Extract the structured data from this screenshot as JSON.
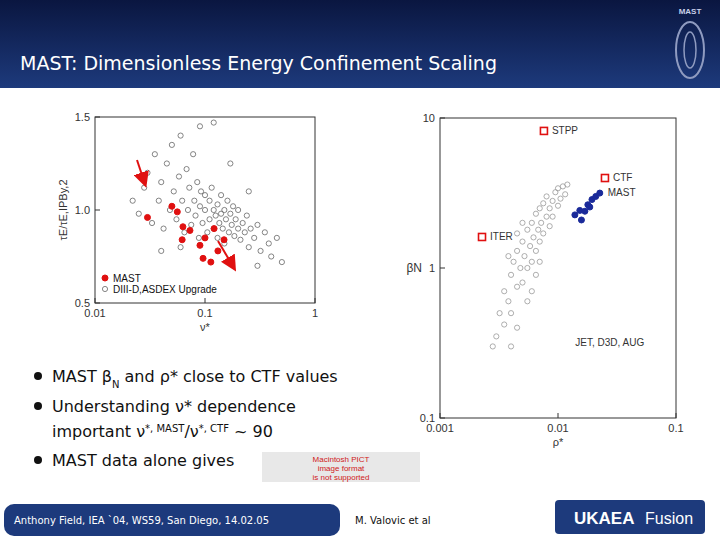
{
  "slide": {
    "title": "MAST: Dimensionless Energy Confinement Scaling",
    "logo": "MAST",
    "bullets": [
      {
        "lines": [
          [
            {
              "t": "MAST β"
            },
            {
              "t": "N",
              "sub": true
            },
            {
              "t": " and ρ* close to CTF values"
            }
          ]
        ]
      },
      {
        "lines": [
          [
            {
              "t": "Understanding  ν* dependence"
            }
          ],
          [
            {
              "t": "important  ν"
            },
            {
              "t": "*, MAST",
              "sup": true
            },
            {
              "t": "/ν"
            },
            {
              "t": "*, CTF",
              "sup": true
            },
            {
              "t": " ~ 90"
            }
          ]
        ]
      },
      {
        "lines": [
          [
            {
              "t": "MAST data alone gives"
            }
          ]
        ]
      }
    ],
    "placeholder": [
      "Macintosh PICT",
      "image format",
      "is not supported"
    ],
    "footer": "Anthony Field, IEA `04, WS59, San Diego, 14.02.05",
    "author": "M. Valovic et al",
    "brand": [
      "UKAEA",
      "Fusion"
    ]
  },
  "chart_data": [
    {
      "type": "scatter",
      "x_label": "ν*",
      "y_label": "τE/τE,IPBy,2",
      "log": "x",
      "xlim": [
        0.01,
        1
      ],
      "xticks": [
        0.01,
        0.1,
        1
      ],
      "ylim": [
        0.5,
        1.5
      ],
      "yticks": [
        0.5,
        {
          "value": 1,
          "label": "1.0"
        },
        1.5
      ],
      "legend": "lower left",
      "series": [
        {
          "name": "MAST",
          "color": "#e01010",
          "marker": "circle",
          "x": [
            0.03,
            0.05,
            0.056,
            0.063,
            0.073,
            0.062,
            0.09,
            0.1,
            0.096,
            0.113,
            0.131,
            0.149,
            0.121
          ],
          "values": [
            0.96,
            1.02,
            0.99,
            0.91,
            0.89,
            0.84,
            0.81,
            0.85,
            0.74,
            0.72,
            0.78,
            0.84,
            0.9
          ]
        },
        {
          "name": "DIII-D,ASDEX Upgrade",
          "color": "#666666",
          "marker": "open_circle",
          "x": [
            0.022,
            0.025,
            0.028,
            0.03,
            0.033,
            0.035,
            0.038,
            0.04,
            0.042,
            0.045,
            0.048,
            0.05,
            0.052,
            0.055,
            0.058,
            0.06,
            0.062,
            0.065,
            0.068,
            0.07,
            0.072,
            0.075,
            0.078,
            0.08,
            0.082,
            0.085,
            0.088,
            0.09,
            0.092,
            0.095,
            0.1,
            0.1,
            0.105,
            0.11,
            0.11,
            0.115,
            0.12,
            0.12,
            0.125,
            0.13,
            0.13,
            0.135,
            0.14,
            0.14,
            0.145,
            0.15,
            0.15,
            0.155,
            0.16,
            0.165,
            0.17,
            0.175,
            0.18,
            0.185,
            0.19,
            0.2,
            0.2,
            0.21,
            0.22,
            0.23,
            0.24,
            0.25,
            0.26,
            0.28,
            0.3,
            0.32,
            0.35,
            0.38,
            0.4,
            0.45,
            0.5,
            0.09,
            0.12,
            0.17,
            0.25,
            0.3,
            0.06,
            0.04
          ],
          "values": [
            1.05,
            0.98,
            1.12,
            1.2,
            0.93,
            1.3,
            1.05,
            1.15,
            0.9,
            1.25,
            1.0,
            1.35,
            1.1,
            0.95,
            1.18,
            1.4,
            1.05,
            0.88,
            1.22,
            1.0,
            1.12,
            0.92,
            1.3,
            1.05,
            0.97,
            1.15,
            0.85,
            1.02,
            1.1,
            0.93,
            1.0,
            1.08,
            0.88,
            0.95,
            1.05,
            1.12,
            0.9,
            1.0,
            0.97,
            1.03,
            0.85,
            0.93,
            1.08,
            0.98,
            0.9,
            1.0,
            0.82,
            0.95,
            1.05,
            0.88,
            0.98,
            0.92,
            1.02,
            0.86,
            0.95,
            0.9,
            1.0,
            0.84,
            0.93,
            0.88,
            0.97,
            0.8,
            0.9,
            0.85,
            0.92,
            0.78,
            0.88,
            0.82,
            0.75,
            0.85,
            0.72,
            1.45,
            1.47,
            1.25,
            1.1,
            0.7,
            0.8,
            0.78
          ]
        }
      ]
    },
    {
      "type": "scatter",
      "x_label": "ρ*",
      "y_label": "βN",
      "log": true,
      "xlim": [
        0.001,
        0.1
      ],
      "xticks": [
        0.001,
        0.01,
        0.1
      ],
      "ylim": [
        0.1,
        10
      ],
      "yticks": [
        0.1,
        1,
        10
      ],
      "series": [
        {
          "name": "STPP",
          "color": "#e01010",
          "marker": "open_square",
          "x": [
            0.0076
          ],
          "values": [
            8.2
          ]
        },
        {
          "name": "CTF",
          "color": "#e01010",
          "marker": "open_square",
          "x": [
            0.025
          ],
          "values": [
            3.98
          ]
        },
        {
          "name": "ITER",
          "color": "#e01010",
          "marker": "open_square",
          "x": [
            0.00227
          ],
          "values": [
            1.61
          ]
        },
        {
          "name": "MAST",
          "color": "#1a2a9a",
          "marker": "circle",
          "x": [
            0.0139,
            0.0153,
            0.0169,
            0.0179,
            0.0194,
            0.0209,
            0.0226,
            0.0186,
            0.0158
          ],
          "values": [
            2.26,
            2.42,
            2.39,
            2.64,
            2.86,
            3.0,
            3.16,
            2.55,
            2.09
          ]
        },
        {
          "name": "JET, D3D, AUG",
          "color": "#999999",
          "marker": "open_circle",
          "x": [
            0.0028,
            0.003,
            0.0032,
            0.0035,
            0.0035,
            0.0038,
            0.004,
            0.004,
            0.0042,
            0.0045,
            0.0045,
            0.0048,
            0.005,
            0.005,
            0.0052,
            0.0055,
            0.0055,
            0.0058,
            0.006,
            0.006,
            0.0062,
            0.0065,
            0.0065,
            0.0068,
            0.007,
            0.007,
            0.0072,
            0.0075,
            0.0075,
            0.008,
            0.008,
            0.0085,
            0.0085,
            0.009,
            0.009,
            0.0095,
            0.01,
            0.01,
            0.0105,
            0.011,
            0.0115,
            0.012,
            0.0045,
            0.004,
            0.0055,
            0.006,
            0.005,
            0.0045,
            0.0038,
            0.007,
            0.0065
          ],
          "values": [
            0.3,
            0.35,
            0.5,
            0.42,
            0.7,
            0.6,
            0.9,
            0.5,
            1.1,
            0.75,
            1.3,
            1.0,
            1.5,
            0.8,
            1.2,
            1.8,
            1.0,
            1.4,
            2.0,
            1.1,
            1.6,
            2.3,
            1.3,
            1.8,
            2.5,
            1.5,
            2.0,
            2.7,
            1.7,
            2.2,
            3.0,
            2.5,
            1.9,
            2.8,
            2.2,
            3.2,
            2.6,
            3.4,
            2.9,
            3.5,
            3.1,
            3.6,
            0.4,
            0.3,
            0.6,
            0.7,
            2.0,
            1.7,
            1.2,
            1.1,
            0.9
          ]
        }
      ]
    }
  ]
}
